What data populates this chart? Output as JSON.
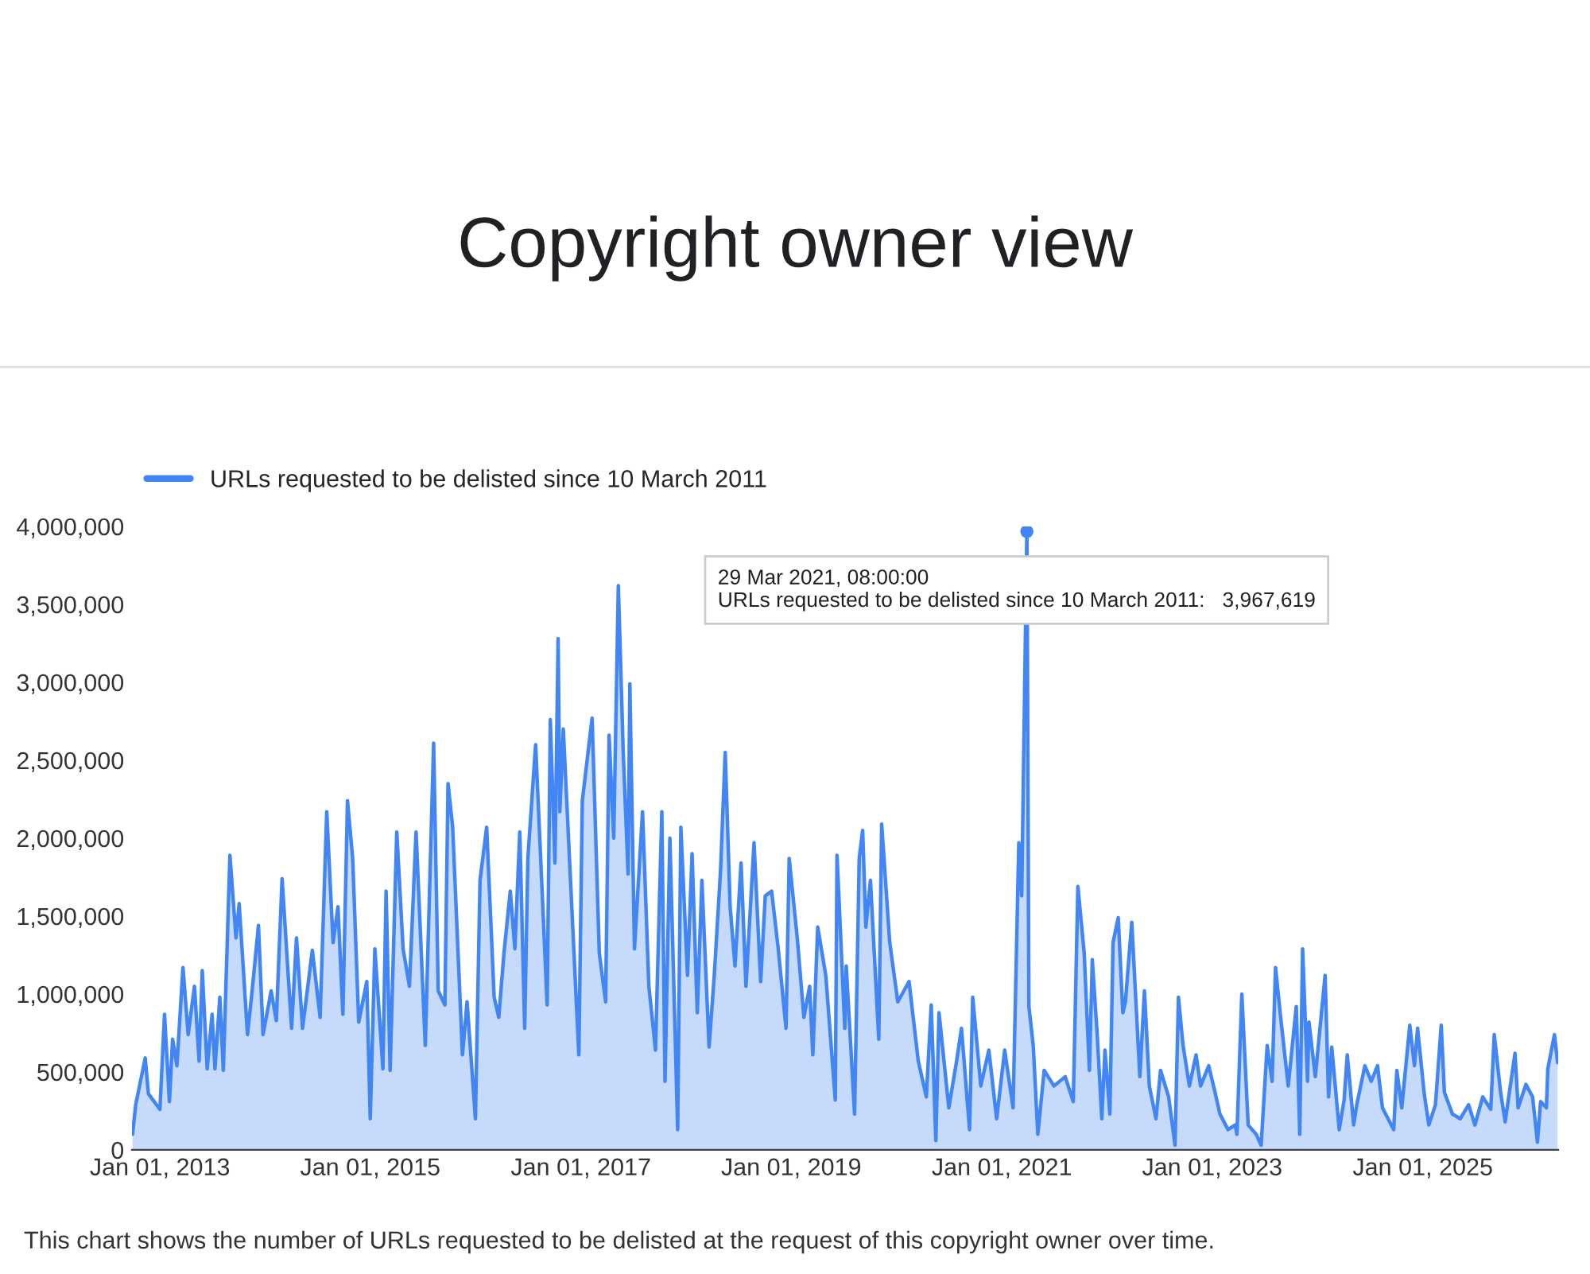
{
  "chart_data": {
    "type": "area",
    "title": "Copyright owner view",
    "x": [
      "2012-09-28",
      "2012-10-09",
      "2012-11-11",
      "2012-11-22",
      "2013-01-01",
      "2013-01-17",
      "2013-02-03",
      "2013-02-14",
      "2013-03-01",
      "2013-03-22",
      "2013-04-09",
      "2013-05-01",
      "2013-05-17",
      "2013-05-28",
      "2013-06-14",
      "2013-07-01",
      "2013-07-11",
      "2013-07-28",
      "2013-08-09",
      "2013-09-01",
      "2013-09-22",
      "2013-10-03",
      "2013-11-01",
      "2013-11-17",
      "2013-12-09",
      "2013-12-25",
      "2014-01-22",
      "2014-02-09",
      "2014-03-01",
      "2014-04-03",
      "2014-04-20",
      "2014-05-11",
      "2014-06-14",
      "2014-07-11",
      "2014-08-03",
      "2014-08-25",
      "2014-09-11",
      "2014-09-28",
      "2014-10-14",
      "2014-11-01",
      "2014-11-22",
      "2014-12-20",
      "2015-01-01",
      "2015-01-17",
      "2015-02-14",
      "2015-02-25",
      "2015-03-11",
      "2015-04-03",
      "2015-04-25",
      "2015-05-17",
      "2015-06-09",
      "2015-07-11",
      "2015-08-09",
      "2015-08-25",
      "2015-09-17",
      "2015-09-28",
      "2015-10-14",
      "2015-11-17",
      "2015-12-03",
      "2016-01-01",
      "2016-01-17",
      "2016-02-09",
      "2016-03-06",
      "2016-03-22",
      "2016-04-09",
      "2016-05-01",
      "2016-05-17",
      "2016-06-03",
      "2016-06-20",
      "2016-07-01",
      "2016-07-28",
      "2016-09-06",
      "2016-09-17",
      "2016-10-03",
      "2016-10-14",
      "2016-10-20",
      "2016-11-01",
      "2016-12-25",
      "2017-01-06",
      "2017-02-09",
      "2017-03-06",
      "2017-03-28",
      "2017-04-09",
      "2017-04-25",
      "2017-05-11",
      "2017-05-28",
      "2017-06-14",
      "2017-06-20",
      "2017-07-06",
      "2017-08-03",
      "2017-08-25",
      "2017-09-17",
      "2017-10-09",
      "2017-10-20",
      "2017-11-06",
      "2017-12-03",
      "2017-12-14",
      "2018-01-06",
      "2018-01-22",
      "2018-02-09",
      "2018-02-25",
      "2018-03-22",
      "2018-04-09",
      "2018-05-01",
      "2018-05-17",
      "2018-06-03",
      "2018-06-20",
      "2018-07-11",
      "2018-07-28",
      "2018-08-25",
      "2018-09-17",
      "2018-10-03",
      "2018-10-25",
      "2018-11-17",
      "2018-12-14",
      "2018-12-25",
      "2019-01-22",
      "2019-02-14",
      "2019-03-06",
      "2019-03-17",
      "2019-04-03",
      "2019-05-01",
      "2019-06-03",
      "2019-06-09",
      "2019-07-06",
      "2019-07-11",
      "2019-08-09",
      "2019-08-25",
      "2019-09-06",
      "2019-09-17",
      "2019-10-03",
      "2019-11-01",
      "2019-11-11",
      "2019-12-09",
      "2020-01-06",
      "2020-02-14",
      "2020-03-17",
      "2020-04-14",
      "2020-05-01",
      "2020-05-17",
      "2020-05-28",
      "2020-07-01",
      "2020-07-28",
      "2020-08-14",
      "2020-09-11",
      "2020-09-22",
      "2020-10-20",
      "2020-11-17",
      "2020-12-14",
      "2021-01-11",
      "2021-02-09",
      "2021-03-01",
      "2021-03-11",
      "2021-03-29",
      "2021-04-05",
      "2021-04-20",
      "2021-05-06",
      "2021-05-28",
      "2021-07-01",
      "2021-08-09",
      "2021-09-06",
      "2021-09-22",
      "2021-10-14",
      "2021-11-01",
      "2021-11-11",
      "2021-11-28",
      "2021-12-14",
      "2021-12-25",
      "2022-01-11",
      "2022-01-22",
      "2022-02-09",
      "2022-02-25",
      "2022-03-06",
      "2022-03-28",
      "2022-04-25",
      "2022-05-11",
      "2022-05-28",
      "2022-06-20",
      "2022-07-06",
      "2022-08-03",
      "2022-08-25",
      "2022-09-06",
      "2022-09-22",
      "2022-10-14",
      "2022-11-06",
      "2022-11-22",
      "2022-12-20",
      "2023-01-11",
      "2023-01-28",
      "2023-02-25",
      "2023-03-22",
      "2023-03-28",
      "2023-04-14",
      "2023-05-06",
      "2023-06-03",
      "2023-06-20",
      "2023-07-11",
      "2023-07-28",
      "2023-08-09",
      "2023-08-25",
      "2023-09-22",
      "2023-10-20",
      "2023-11-01",
      "2023-11-11",
      "2023-11-28",
      "2023-12-03",
      "2023-12-25",
      "2024-01-28",
      "2024-02-09",
      "2024-02-20",
      "2024-03-17",
      "2024-04-03",
      "2024-04-14",
      "2024-05-06",
      "2024-05-17",
      "2024-06-14",
      "2024-07-06",
      "2024-07-28",
      "2024-08-14",
      "2024-09-22",
      "2024-10-03",
      "2024-10-20",
      "2024-11-17",
      "2024-12-03",
      "2024-12-14",
      "2025-01-06",
      "2025-01-22",
      "2025-02-14",
      "2025-03-06",
      "2025-03-17",
      "2025-04-14",
      "2025-05-11",
      "2025-06-09",
      "2025-07-01",
      "2025-07-28",
      "2025-08-25",
      "2025-09-06",
      "2025-09-28",
      "2025-10-14",
      "2025-11-17",
      "2025-11-28",
      "2025-12-25",
      "2026-01-17",
      "2026-02-03",
      "2026-02-14",
      "2026-03-06",
      "2026-03-11",
      "2026-04-03",
      "2026-04-14"
    ],
    "series": [
      {
        "name": "URLs requested to be delisted since 10 March 2011",
        "color": "#4285f4",
        "values": [
          100000,
          290000,
          590000,
          360000,
          260000,
          870000,
          310000,
          710000,
          540000,
          1170000,
          740000,
          1050000,
          570000,
          1150000,
          520000,
          870000,
          520000,
          980000,
          510000,
          1890000,
          1360000,
          1580000,
          740000,
          1020000,
          1440000,
          740000,
          1020000,
          830000,
          1740000,
          780000,
          1360000,
          780000,
          1280000,
          850000,
          2170000,
          1330000,
          1560000,
          870000,
          2240000,
          1870000,
          820000,
          1080000,
          200000,
          1290000,
          520000,
          1660000,
          510000,
          2040000,
          1290000,
          1050000,
          2040000,
          670000,
          2610000,
          1020000,
          930000,
          2350000,
          2070000,
          610000,
          950000,
          200000,
          1730000,
          2070000,
          980000,
          850000,
          1260000,
          1660000,
          1290000,
          2040000,
          780000,
          1870000,
          2600000,
          930000,
          2760000,
          1840000,
          3280000,
          2170000,
          2700000,
          610000,
          2240000,
          2770000,
          1260000,
          950000,
          2660000,
          2000000,
          3620000,
          2550000,
          1770000,
          2990000,
          1290000,
          2170000,
          1050000,
          640000,
          2170000,
          440000,
          2000000,
          130000,
          2070000,
          1120000,
          1900000,
          880000,
          1730000,
          660000,
          1120000,
          1800000,
          2550000,
          1560000,
          1180000,
          1840000,
          1050000,
          1970000,
          1080000,
          1630000,
          1660000,
          1290000,
          780000,
          1870000,
          1360000,
          850000,
          1050000,
          610000,
          1430000,
          1120000,
          320000,
          1890000,
          780000,
          1180000,
          230000,
          1870000,
          2050000,
          1430000,
          1730000,
          710000,
          2090000,
          1330000,
          950000,
          1080000,
          570000,
          340000,
          930000,
          60000,
          880000,
          270000,
          570000,
          780000,
          130000,
          980000,
          410000,
          640000,
          200000,
          640000,
          270000,
          1970000,
          1630000,
          3967619,
          920000,
          670000,
          100000,
          510000,
          410000,
          470000,
          310000,
          1690000,
          1260000,
          510000,
          1220000,
          740000,
          200000,
          640000,
          230000,
          1330000,
          1490000,
          880000,
          950000,
          1460000,
          470000,
          1020000,
          410000,
          200000,
          510000,
          340000,
          30000,
          980000,
          670000,
          410000,
          610000,
          410000,
          540000,
          370000,
          230000,
          130000,
          160000,
          100000,
          1000000,
          160000,
          100000,
          30000,
          670000,
          440000,
          1170000,
          880000,
          410000,
          920000,
          100000,
          1290000,
          440000,
          820000,
          470000,
          1120000,
          340000,
          660000,
          130000,
          320000,
          610000,
          160000,
          290000,
          540000,
          440000,
          540000,
          270000,
          130000,
          510000,
          270000,
          800000,
          540000,
          780000,
          360000,
          160000,
          290000,
          800000,
          370000,
          230000,
          200000,
          290000,
          160000,
          340000,
          260000,
          740000,
          370000,
          180000,
          620000,
          270000,
          420000,
          340000,
          50000,
          310000,
          270000,
          520000,
          740000,
          560000
        ]
      }
    ],
    "xlim": [
      "2012-09-26",
      "2026-04-16"
    ],
    "xticks": [
      {
        "value": "2013-01-01",
        "label": "Jan 01, 2013"
      },
      {
        "value": "2015-01-01",
        "label": "Jan 01, 2015"
      },
      {
        "value": "2017-01-01",
        "label": "Jan 01, 2017"
      },
      {
        "value": "2019-01-01",
        "label": "Jan 01, 2019"
      },
      {
        "value": "2021-01-01",
        "label": "Jan 01, 2021"
      },
      {
        "value": "2023-01-01",
        "label": "Jan 01, 2023"
      },
      {
        "value": "2025-01-01",
        "label": "Jan 01, 2025"
      }
    ],
    "ylim": [
      0,
      4000000
    ],
    "yticks": [
      0,
      {
        "value": 500000,
        "label": "500,000"
      },
      {
        "value": 1000000,
        "label": "1,000,000"
      },
      {
        "value": 1500000,
        "label": "1,500,000"
      },
      {
        "value": 2000000,
        "label": "2,000,000"
      },
      {
        "value": 2500000,
        "label": "2,500,000"
      },
      {
        "value": 3000000,
        "label": "3,000,000"
      },
      {
        "value": 3500000,
        "label": "3,500,000"
      },
      {
        "value": 4000000,
        "label": "4,000,000"
      }
    ],
    "grid": false,
    "legend": "top left",
    "marker": "none",
    "line_style": "solid",
    "annotations": [
      {
        "text": "29 Mar 2021, 08:00:00\nURLs requested to be delisted since 10 March 2011:   3,967,619",
        "x": "2021-03-29",
        "y": 3967619
      },
      "This chart shows the number of URLs requested to be delisted at the request of this copyright owner over time."
    ]
  }
}
